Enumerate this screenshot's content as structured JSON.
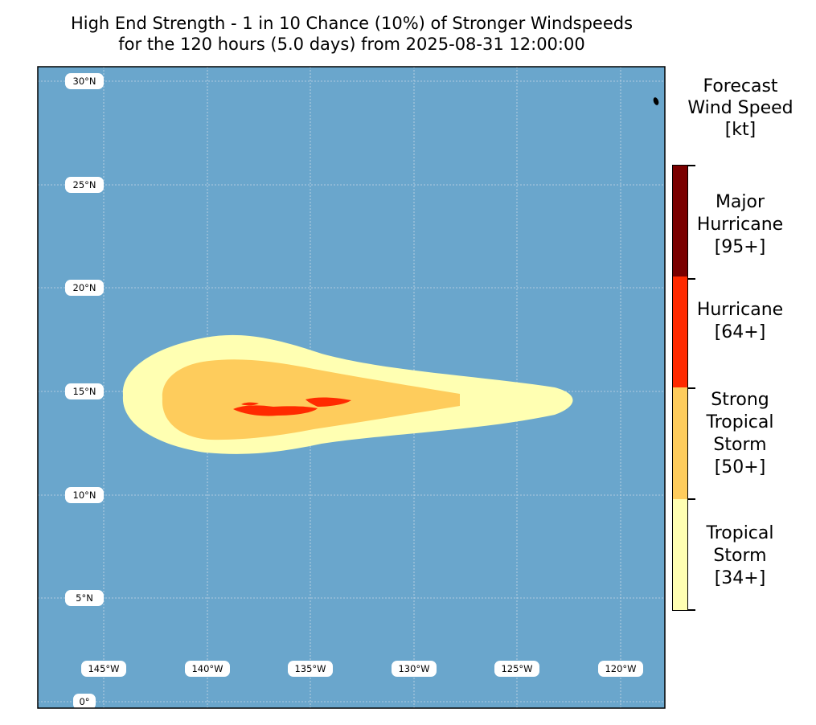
{
  "title": {
    "line1": "High End Strength - 1 in 10 Chance (10%) of Stronger Windspeeds",
    "line2": "for the 120 hours (5.0 days) from 2025-08-31 12:00:00"
  },
  "map": {
    "ocean_color": "#6aa6cc",
    "grid_color": "#c8d8e6",
    "lat_labels": [
      "30°N",
      "25°N",
      "20°N",
      "15°N",
      "10°N",
      "5°N",
      "0°"
    ],
    "lon_labels": [
      "145°W",
      "140°W",
      "135°W",
      "130°W",
      "125°W",
      "120°W"
    ],
    "island": "small-island-northeast"
  },
  "colorbar": {
    "title": "Forecast\nWind Speed\n[kt]",
    "categories": [
      {
        "label": "Major\nHurricane\n[95+]",
        "color": "#7a0000"
      },
      {
        "label": "Hurricane\n[64+]",
        "color": "#ff2a00"
      },
      {
        "label": "Strong\nTropical\nStorm\n[50+]",
        "color": "#fecc5c"
      },
      {
        "label": "Tropical\nStorm\n[34+]",
        "color": "#ffffb2"
      }
    ]
  }
}
